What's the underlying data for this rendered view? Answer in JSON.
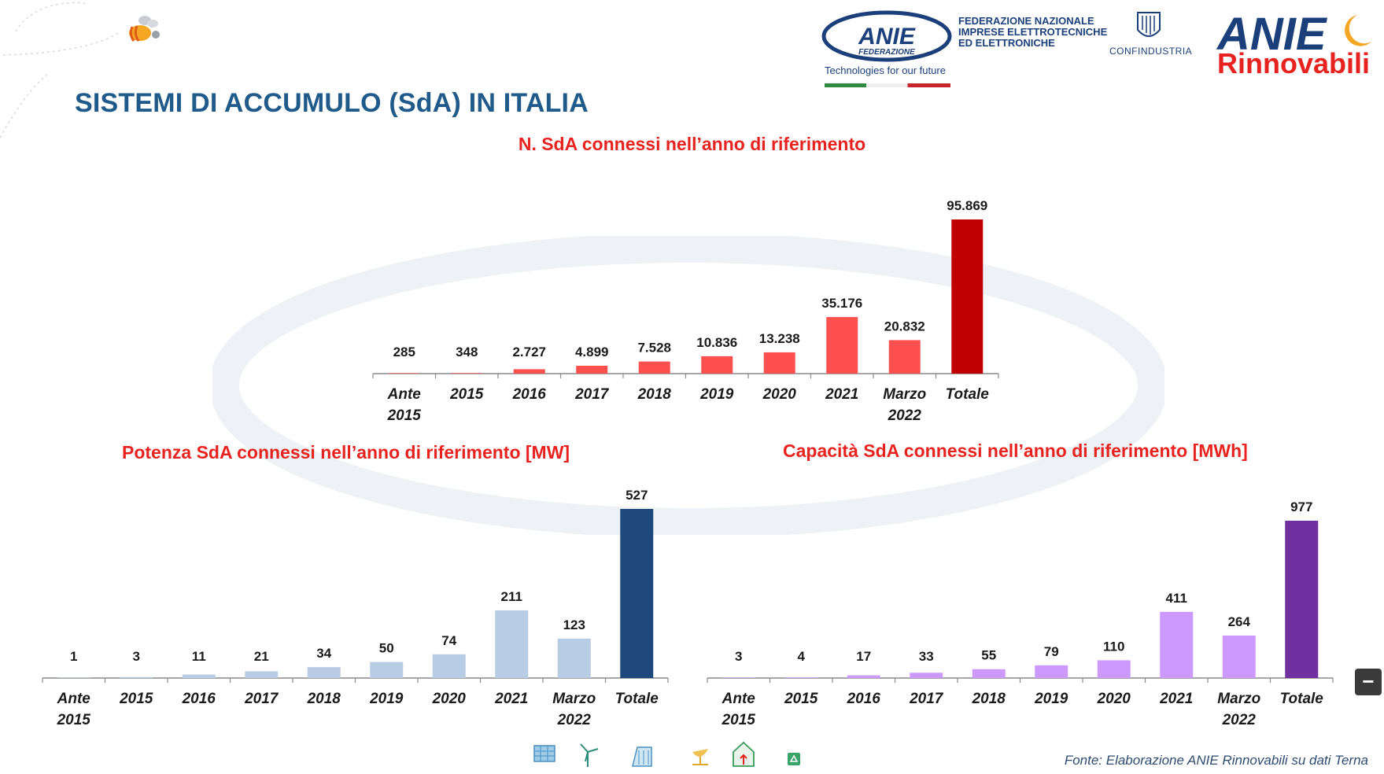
{
  "header": {
    "title": "SISTEMI DI ACCUMULO (SdA) IN ITALIA",
    "federation_lines": [
      "FEDERAZIONE NAZIONALE",
      "IMPRESE ELETTROTECNICHE",
      "ED ELETTRONICHE"
    ],
    "anie_logo": "ANIE",
    "anie_logo_sub": "FEDERAZIONE",
    "tagline": "Technologies for our future",
    "confindustria": "CONFINDUSTRIA",
    "anie_rinnovabili_top": "ANIE",
    "anie_rinnovabili_bottom": "Rinnovabili"
  },
  "footer": {
    "source": "Fonte: Elaborazione ANIE Rinnovabili su dati Terna",
    "icons": [
      "solar-panel-icon",
      "wind-turbine-icon",
      "hydro-icon",
      "satellite-dish-icon",
      "house-icon",
      "recycle-icon"
    ]
  },
  "colors": {
    "title": "#1f5a8a",
    "chart_title": "#e8231f",
    "chart1_bar": "#ff5050",
    "chart1_total": "#c00000",
    "chart2_bar": "#b8cce4",
    "chart2_total": "#1f497d",
    "chart3_bar": "#cc99ff",
    "chart3_total": "#7030a0"
  },
  "chart_data": [
    {
      "type": "bar",
      "title": "N. SdA connessi nell’anno di riferimento",
      "categories": [
        "Ante 2015",
        "2015",
        "2016",
        "2017",
        "2018",
        "2019",
        "2020",
        "2021",
        "Marzo 2022",
        "Totale"
      ],
      "values": [
        285,
        348,
        2727,
        4899,
        7528,
        10836,
        13238,
        35176,
        20832,
        95869
      ],
      "value_labels": [
        "285",
        "348",
        "2.727",
        "4.899",
        "7.528",
        "10.836",
        "13.238",
        "35.176",
        "20.832",
        "95.869"
      ],
      "xlabel": "",
      "ylabel": "",
      "ylim": [
        0,
        95869
      ]
    },
    {
      "type": "bar",
      "title": "Potenza SdA connessi nell’anno di riferimento [MW]",
      "categories": [
        "Ante 2015",
        "2015",
        "2016",
        "2017",
        "2018",
        "2019",
        "2020",
        "2021",
        "Marzo 2022",
        "Totale"
      ],
      "values": [
        1,
        3,
        11,
        21,
        34,
        50,
        74,
        211,
        123,
        527
      ],
      "value_labels": [
        "1",
        "3",
        "11",
        "21",
        "34",
        "50",
        "74",
        "211",
        "123",
        "527"
      ],
      "xlabel": "",
      "ylabel": "",
      "ylim": [
        0,
        527
      ]
    },
    {
      "type": "bar",
      "title": "Capacità SdA connessi nell’anno di riferimento [MWh]",
      "categories": [
        "Ante 2015",
        "2015",
        "2016",
        "2017",
        "2018",
        "2019",
        "2020",
        "2021",
        "Marzo 2022",
        "Totale"
      ],
      "values": [
        3,
        4,
        17,
        33,
        55,
        79,
        110,
        411,
        264,
        977
      ],
      "value_labels": [
        "3",
        "4",
        "17",
        "33",
        "55",
        "79",
        "110",
        "411",
        "264",
        "977"
      ],
      "xlabel": "",
      "ylabel": "",
      "ylim": [
        0,
        977
      ]
    }
  ]
}
